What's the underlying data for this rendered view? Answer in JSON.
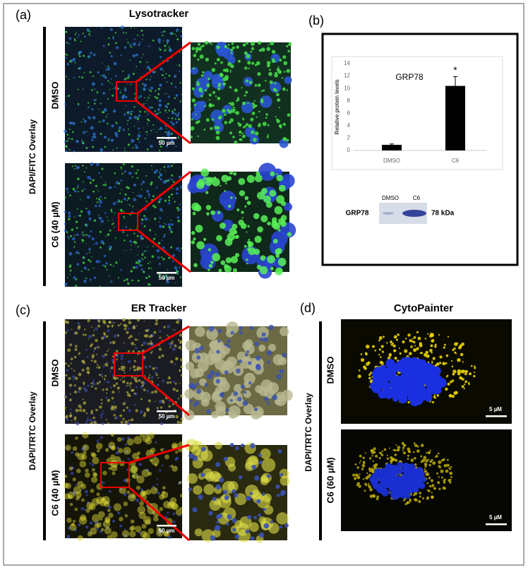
{
  "panel_a": {
    "label": "(a)",
    "title": "Lysotracker",
    "side_label": "DAPI/FITC Overlay",
    "rows": [
      "DMSO",
      "C6 (40 µM)"
    ],
    "scale_bar": "50 µm"
  },
  "panel_b": {
    "label": "(b)",
    "blot": {
      "lanes": [
        "DMSO",
        "C6"
      ],
      "protein": "GRP78",
      "size": "78 kDa"
    }
  },
  "chart_data": {
    "type": "bar",
    "title": "GRP78",
    "y_label": "Relative protein levels",
    "categories": [
      "DMSO",
      "C6"
    ],
    "values": [
      0.9,
      10.4
    ],
    "errors": [
      0.15,
      1.5
    ],
    "annotation": "*",
    "color": "#000000",
    "ylim": [
      0,
      14
    ],
    "yticks": [
      0,
      2,
      4,
      6,
      8,
      10,
      12,
      14
    ],
    "grid": false
  },
  "panel_c": {
    "label": "(c)",
    "title": "ER Tracker",
    "side_label": "DAPI/TRTC Overlay",
    "rows": [
      "DMSO",
      "C6 (40 µM)"
    ],
    "scale_bar": "50 µm"
  },
  "panel_d": {
    "label": "(d)",
    "title": "CytoPainter",
    "side_label": "DAPI/TRTC Overlay",
    "rows": [
      "DMSO",
      "C6 (60 µM)"
    ],
    "scale_bar": "5 µM"
  }
}
